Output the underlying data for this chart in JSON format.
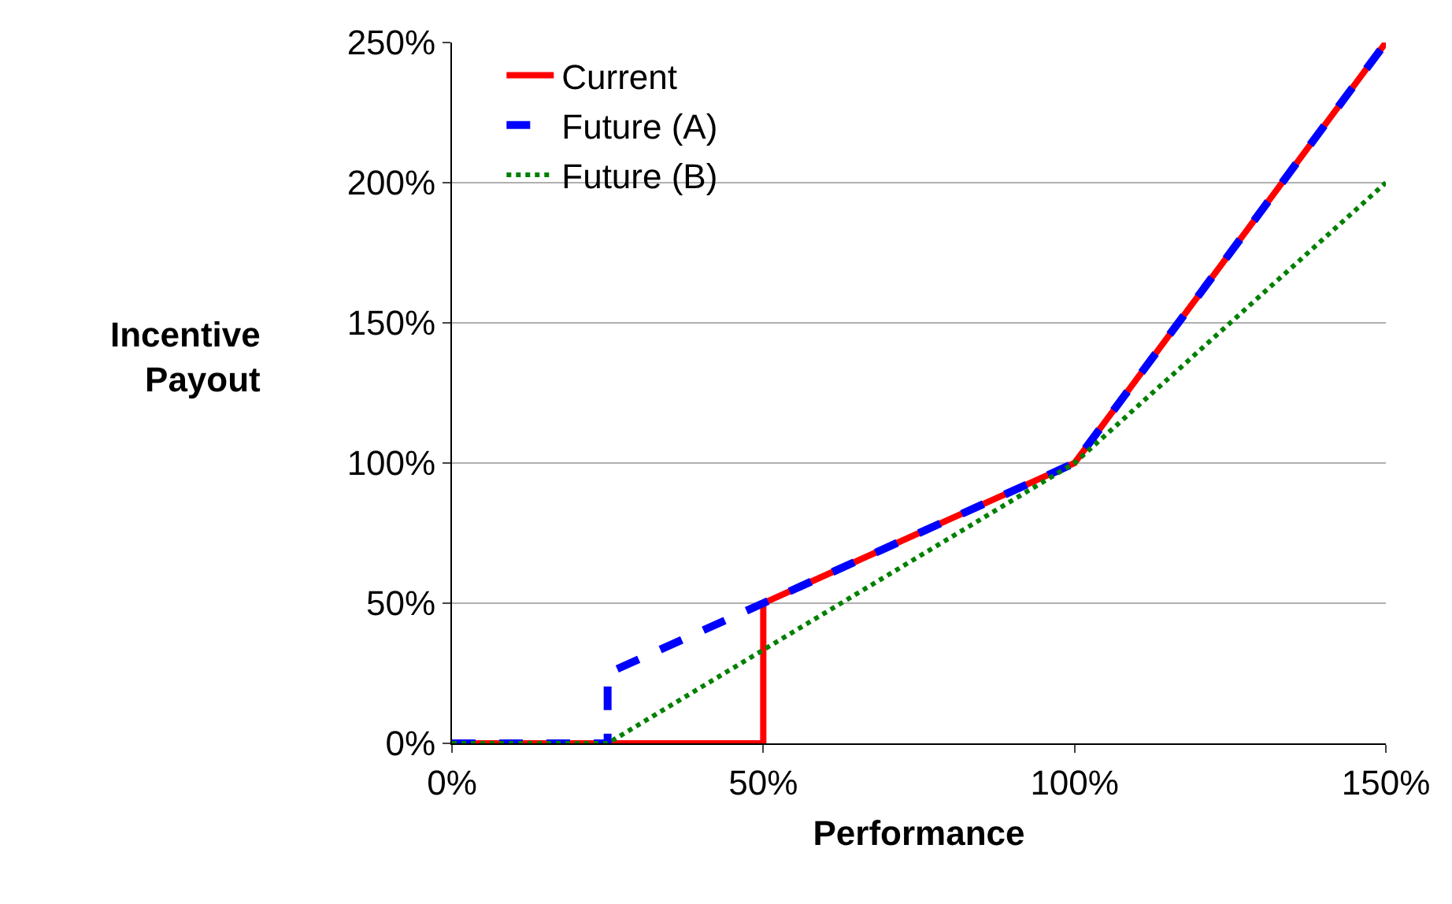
{
  "chart_data": {
    "type": "line",
    "xlabel": "Performance",
    "ylabel": "Incentive Payout",
    "series": [
      {
        "name": "Current",
        "color": "#ff0000",
        "line_style": "solid",
        "x": [
          0,
          50,
          50,
          100,
          150
        ],
        "values": [
          0,
          0,
          50,
          100,
          250
        ]
      },
      {
        "name": "Future (A)",
        "color": "#0000ff",
        "line_style": "dashed",
        "x": [
          0,
          25,
          25,
          50,
          100,
          150
        ],
        "values": [
          0,
          0,
          25,
          50,
          100,
          250
        ]
      },
      {
        "name": "Future (B)",
        "color": "#008000",
        "line_style": "dotted",
        "x": [
          0,
          25,
          100,
          150
        ],
        "values": [
          0,
          0,
          100,
          200
        ]
      }
    ],
    "xlim": [
      0,
      150
    ],
    "ylim": [
      0,
      250
    ],
    "xticks": [
      {
        "value": 0,
        "label": "0%"
      },
      {
        "value": 50,
        "label": "50%"
      },
      {
        "value": 100,
        "label": "100%"
      },
      {
        "value": 150,
        "label": "150%"
      }
    ],
    "yticks": [
      {
        "value": 0,
        "label": "0%"
      },
      {
        "value": 50,
        "label": "50%"
      },
      {
        "value": 100,
        "label": "100%"
      },
      {
        "value": 150,
        "label": "150%"
      },
      {
        "value": 200,
        "label": "200%"
      },
      {
        "value": 250,
        "label": "250%"
      }
    ],
    "grid": "y",
    "legend": "top left",
    "marker": "none"
  }
}
